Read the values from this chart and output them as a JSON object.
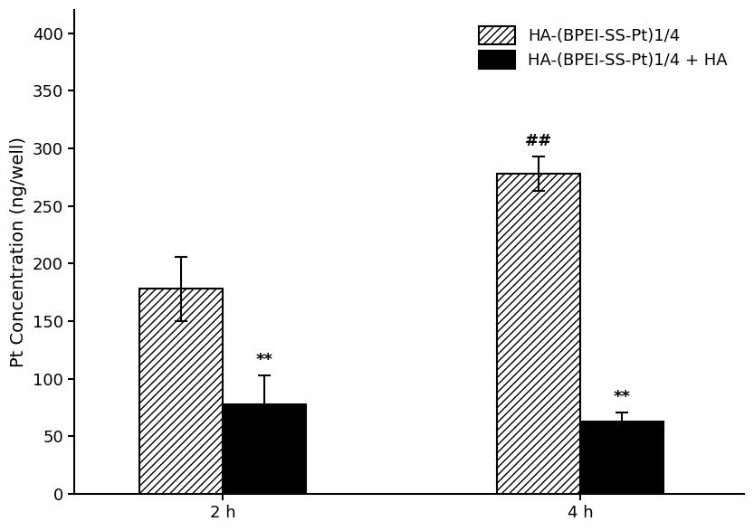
{
  "groups": [
    "2 h",
    "4 h"
  ],
  "bar1_values": [
    178,
    278
  ],
  "bar2_values": [
    78,
    63
  ],
  "bar1_errors": [
    28,
    15
  ],
  "bar2_errors": [
    25,
    8
  ],
  "bar1_label": "HA-(BPEI-SS-Pt)1/4",
  "bar2_label": "HA-(BPEI-SS-Pt)1/4 + HA",
  "bar1_color": "white",
  "bar2_color": "black",
  "bar1_edgecolor": "black",
  "bar2_edgecolor": "black",
  "ylabel": "Pt Concentration (ng/well)",
  "ylim": [
    0,
    420
  ],
  "yticks": [
    0,
    50,
    100,
    150,
    200,
    250,
    300,
    350,
    400
  ],
  "bar_width": 0.28,
  "annot_bar2_2h": "**",
  "annot_bar2_4h": "**",
  "annot_bar1_4h": "##",
  "background_color": "white",
  "label_fontsize": 14,
  "tick_fontsize": 13,
  "legend_fontsize": 13,
  "annot_fontsize": 13,
  "group_centers": [
    0.5,
    1.7
  ]
}
